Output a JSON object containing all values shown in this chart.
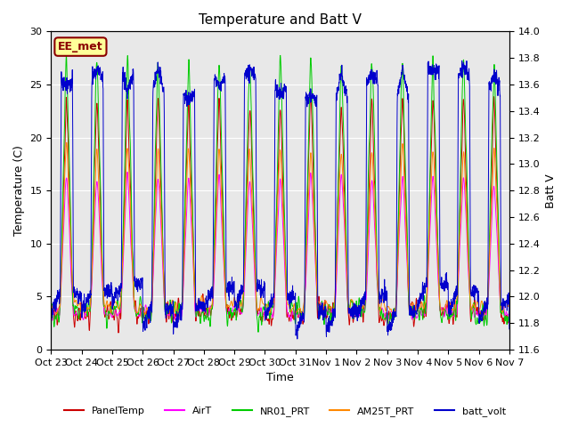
{
  "title": "Temperature and Batt V",
  "xlabel": "Time",
  "ylabel_left": "Temperature (C)",
  "ylabel_right": "Batt V",
  "ylim_left": [
    0,
    30
  ],
  "ylim_right": [
    11.6,
    14.0
  ],
  "annotation_text": "EE_met",
  "annotation_color": "#8B0000",
  "annotation_bg": "#FFFF99",
  "fig_bg_color": "#FFFFFF",
  "plot_bg_color": "#E8E8E8",
  "legend_entries": [
    "PanelTemp",
    "AirT",
    "NR01_PRT",
    "AM25T_PRT",
    "batt_volt"
  ],
  "line_colors": [
    "#CC0000",
    "#FF00FF",
    "#00CC00",
    "#FF8800",
    "#0000CC"
  ],
  "num_days": 15,
  "points_per_day": 144,
  "x_tick_labels": [
    "Oct 23",
    "Oct 24",
    "Oct 25",
    "Oct 26",
    "Oct 27",
    "Oct 28",
    "Oct 29",
    "Oct 30",
    "Oct 31",
    "Nov 1",
    "Nov 2",
    "Nov 3",
    "Nov 4",
    "Nov 5",
    "Nov 6",
    "Nov 7"
  ],
  "grid_color": "#FFFFFF",
  "title_fontsize": 11,
  "lw": 0.7
}
